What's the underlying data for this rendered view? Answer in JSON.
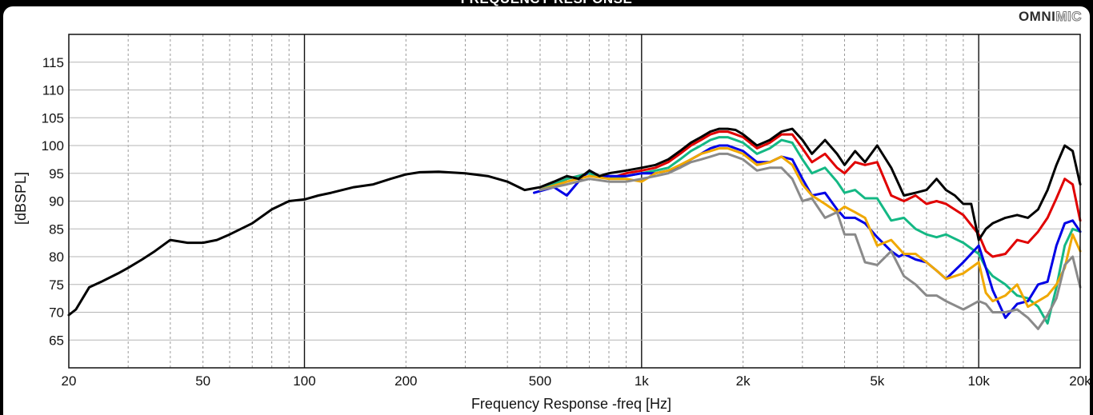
{
  "header": {
    "title": "FREQUENCY RESPONSE",
    "logo_bold": "OMNI",
    "logo_outline": "MIC"
  },
  "chart_data": {
    "type": "line",
    "title": "FREQUENCY RESPONSE",
    "xlabel": "Frequency Response -freq [Hz]",
    "ylabel": "[dBSPL]",
    "xscale": "log",
    "xlim": [
      20,
      20000
    ],
    "ylim": [
      60,
      120
    ],
    "grid": true,
    "x_ticks": [
      20,
      50,
      100,
      200,
      500,
      1000,
      2000,
      5000,
      10000,
      20000
    ],
    "x_tick_labels": [
      "20",
      "50",
      "100",
      "200",
      "500",
      "1k",
      "2k",
      "5k",
      "10k",
      "20k"
    ],
    "y_ticks": [
      65,
      70,
      75,
      80,
      85,
      90,
      95,
      100,
      105,
      110,
      115
    ],
    "y_tick_labels": [
      "65",
      "70",
      "75",
      "80",
      "85",
      "90",
      "95",
      "100",
      "105",
      "110",
      "115"
    ],
    "series": [
      {
        "color": "#000000",
        "x": [
          20,
          21,
          23,
          25,
          28,
          30,
          33,
          36,
          40,
          45,
          50,
          55,
          60,
          70,
          80,
          90,
          100,
          110,
          120,
          140,
          160,
          180,
          200,
          220,
          250,
          300,
          350,
          400,
          450,
          500,
          550,
          600,
          650,
          700,
          750,
          800,
          900,
          1000,
          1100,
          1200,
          1300,
          1400,
          1500,
          1600,
          1700,
          1800,
          1900,
          2000,
          2200,
          2400,
          2600,
          2800,
          3000,
          3200,
          3500,
          3800,
          4000,
          4300,
          4600,
          5000,
          5500,
          6000,
          6500,
          7000,
          7500,
          8000,
          8500,
          9000,
          9500,
          10000,
          10500,
          11000,
          12000,
          13000,
          14000,
          15000,
          16000,
          17000,
          18000,
          19000,
          20000
        ],
        "y": [
          69.5,
          70.5,
          74.5,
          75.5,
          77.0,
          78.0,
          79.5,
          81.0,
          83.0,
          82.5,
          82.5,
          83.0,
          84.0,
          86.0,
          88.5,
          90.0,
          90.3,
          91.0,
          91.5,
          92.5,
          93.0,
          94.0,
          94.8,
          95.2,
          95.3,
          95.0,
          94.5,
          93.5,
          92.0,
          92.5,
          93.5,
          94.5,
          94.0,
          95.5,
          94.5,
          95.0,
          95.5,
          96.0,
          96.5,
          97.5,
          99.0,
          100.5,
          101.5,
          102.5,
          103.0,
          103.0,
          102.8,
          102.0,
          100.0,
          101.0,
          102.5,
          103.0,
          101.0,
          98.5,
          101.0,
          98.5,
          96.5,
          99.0,
          97.0,
          100.0,
          96.0,
          91.0,
          91.5,
          92.0,
          94.0,
          92.0,
          91.0,
          89.5,
          89.5,
          83.0,
          85.0,
          86.0,
          87.0,
          87.5,
          87.0,
          88.5,
          92.0,
          96.5,
          100.0,
          99.0,
          93.0
        ]
      },
      {
        "color": "#e00000",
        "x": [
          500,
          600,
          700,
          800,
          900,
          1000,
          1100,
          1200,
          1300,
          1400,
          1500,
          1600,
          1700,
          1800,
          1900,
          2000,
          2200,
          2400,
          2600,
          2800,
          3000,
          3200,
          3500,
          3800,
          4000,
          4300,
          4600,
          5000,
          5500,
          6000,
          6500,
          7000,
          7500,
          8000,
          9000,
          10000,
          10500,
          11000,
          12000,
          13000,
          14000,
          15000,
          16000,
          17000,
          18000,
          19000,
          20000
        ],
        "y": [
          92.0,
          94.0,
          95.0,
          94.0,
          95.0,
          95.5,
          96.0,
          97.0,
          98.5,
          100.0,
          101.0,
          102.0,
          102.5,
          102.5,
          102.0,
          101.5,
          99.5,
          100.5,
          102.0,
          102.0,
          99.5,
          97.0,
          98.5,
          96.0,
          95.0,
          97.0,
          96.5,
          97.0,
          91.0,
          90.0,
          91.0,
          89.5,
          90.0,
          89.5,
          87.5,
          84.0,
          81.0,
          80.0,
          80.5,
          83.0,
          82.5,
          84.5,
          87.0,
          90.5,
          94.0,
          93.0,
          86.5
        ]
      },
      {
        "color": "#14b884",
        "x": [
          500,
          600,
          700,
          800,
          900,
          1000,
          1100,
          1200,
          1300,
          1400,
          1500,
          1600,
          1700,
          1800,
          1900,
          2000,
          2200,
          2400,
          2600,
          2800,
          3000,
          3200,
          3500,
          3800,
          4000,
          4300,
          4600,
          5000,
          5500,
          6000,
          6500,
          7000,
          7500,
          8000,
          9000,
          10000,
          10500,
          11000,
          12000,
          13000,
          14000,
          15000,
          16000,
          17000,
          18000,
          19000,
          20000
        ],
        "y": [
          92.0,
          94.0,
          95.0,
          94.0,
          94.5,
          95.0,
          95.5,
          96.0,
          97.5,
          99.0,
          100.0,
          101.0,
          101.5,
          101.5,
          101.0,
          100.5,
          98.5,
          99.5,
          101.0,
          100.5,
          97.5,
          95.0,
          96.0,
          93.5,
          91.5,
          92.0,
          90.5,
          90.5,
          86.5,
          87.0,
          85.0,
          84.0,
          83.5,
          84.0,
          82.5,
          80.5,
          78.0,
          76.5,
          75.0,
          73.0,
          72.5,
          71.0,
          68.0,
          74.5,
          82.0,
          85.0,
          84.5
        ]
      },
      {
        "color": "#0000e6",
        "x": [
          480,
          550,
          600,
          650,
          700,
          750,
          800,
          900,
          1000,
          1100,
          1200,
          1300,
          1400,
          1500,
          1600,
          1700,
          1800,
          1900,
          2000,
          2200,
          2400,
          2600,
          2800,
          3000,
          3200,
          3500,
          3800,
          4000,
          4300,
          4600,
          5000,
          5500,
          5800,
          6000,
          6500,
          7000,
          7500,
          8000,
          9000,
          10000,
          10500,
          11000,
          12000,
          13000,
          14000,
          15000,
          16000,
          17000,
          18000,
          19000,
          20000
        ],
        "y": [
          91.5,
          92.5,
          91.0,
          93.5,
          95.5,
          94.5,
          94.5,
          94.5,
          95.0,
          95.0,
          95.5,
          96.0,
          97.5,
          98.5,
          99.5,
          100.0,
          100.0,
          99.5,
          99.0,
          97.0,
          97.0,
          98.0,
          97.5,
          94.0,
          91.0,
          91.5,
          88.5,
          87.0,
          87.0,
          86.0,
          83.5,
          81.0,
          80.0,
          80.5,
          79.5,
          79.0,
          77.5,
          76.0,
          79.0,
          82.0,
          78.0,
          74.0,
          69.0,
          71.5,
          72.0,
          75.0,
          75.5,
          82.0,
          86.0,
          86.5,
          84.5
        ]
      },
      {
        "color": "#f0a800",
        "x": [
          500,
          600,
          700,
          800,
          900,
          1000,
          1100,
          1200,
          1300,
          1400,
          1500,
          1600,
          1700,
          1800,
          1900,
          2000,
          2200,
          2400,
          2600,
          2800,
          3000,
          3200,
          3500,
          3800,
          4000,
          4300,
          4600,
          5000,
          5500,
          6000,
          6500,
          7000,
          7500,
          8000,
          9000,
          10000,
          10500,
          11000,
          12000,
          13000,
          14000,
          15000,
          16000,
          17000,
          18000,
          19000,
          20000
        ],
        "y": [
          92.0,
          93.5,
          94.5,
          94.0,
          94.0,
          93.5,
          95.0,
          95.5,
          96.5,
          97.5,
          98.5,
          99.0,
          99.5,
          99.5,
          99.0,
          98.5,
          96.5,
          97.0,
          98.0,
          96.5,
          93.0,
          91.0,
          89.5,
          88.0,
          89.0,
          88.0,
          87.0,
          82.0,
          83.0,
          80.5,
          80.5,
          79.0,
          77.5,
          76.0,
          77.0,
          79.0,
          73.5,
          72.0,
          73.0,
          75.0,
          71.0,
          72.0,
          73.0,
          75.0,
          78.0,
          84.0,
          81.0
        ]
      },
      {
        "color": "#8a8a8a",
        "x": [
          500,
          600,
          700,
          800,
          900,
          1000,
          1100,
          1200,
          1300,
          1400,
          1500,
          1600,
          1700,
          1800,
          1900,
          2000,
          2200,
          2400,
          2600,
          2800,
          3000,
          3200,
          3500,
          3800,
          4000,
          4300,
          4600,
          5000,
          5500,
          6000,
          6500,
          7000,
          7500,
          8000,
          9000,
          10000,
          10500,
          11000,
          12000,
          13000,
          14000,
          15000,
          16000,
          17000,
          18000,
          19000,
          20000
        ],
        "y": [
          92.0,
          93.0,
          94.0,
          93.5,
          93.5,
          94.0,
          94.5,
          95.0,
          96.0,
          97.0,
          97.5,
          98.0,
          98.5,
          98.5,
          98.0,
          97.5,
          95.5,
          96.0,
          96.0,
          94.0,
          90.0,
          90.5,
          87.0,
          88.0,
          84.0,
          84.0,
          79.0,
          78.5,
          81.0,
          76.5,
          75.0,
          73.0,
          73.0,
          72.0,
          70.5,
          72.0,
          71.5,
          70.0,
          70.0,
          70.5,
          69.0,
          67.0,
          69.5,
          72.5,
          78.5,
          80.0,
          74.5
        ]
      }
    ]
  }
}
